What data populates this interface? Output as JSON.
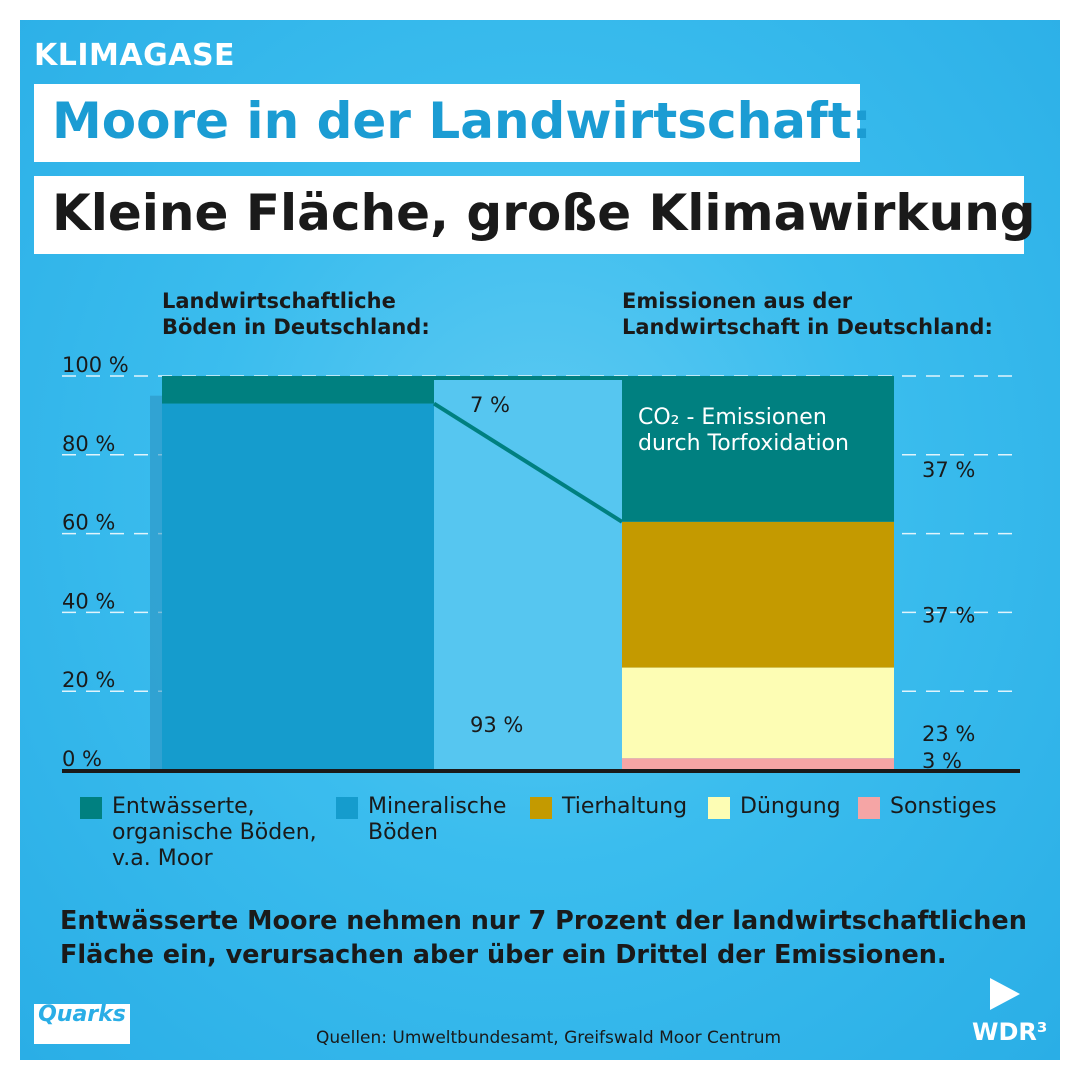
{
  "header": {
    "kicker": "KLIMAGASE",
    "title_line1": "Moore in der Landwirtschaft:",
    "title_line2": "Kleine Fläche, große Klimawirkung"
  },
  "chart_data": {
    "type": "bar",
    "stacked": true,
    "categories": [
      "Landwirtschaftliche\nBöden in Deutschland:",
      "Emissionen aus der\nLandwirtschaft in Deutschland:"
    ],
    "series": [
      {
        "name": "Sonstiges",
        "color": "#f5a5a5",
        "values": [
          0,
          3
        ],
        "value_labels": [
          "",
          "3 %"
        ]
      },
      {
        "name": "Düngung",
        "color": "#fdfdb4",
        "values": [
          0,
          23
        ],
        "value_labels": [
          "",
          "23 %"
        ]
      },
      {
        "name": "Tierhaltung",
        "color": "#c49a00",
        "values": [
          0,
          37
        ],
        "value_labels": [
          "",
          "37 %"
        ]
      },
      {
        "name": "Mineralische\nBöden",
        "color": "#159ccd",
        "values": [
          93,
          0
        ],
        "value_labels": [
          "93 %",
          ""
        ]
      },
      {
        "name": "Entwässerte,\norganische Böden,\nv.a. Moor",
        "color": "#008080",
        "values": [
          7,
          37
        ],
        "value_labels": [
          "7 %",
          "37 %"
        ]
      }
    ],
    "bar_annotation": "CO₂ - Emissionen\ndurch Torfoxidation",
    "y_ticks": [
      "0 %",
      "20 %",
      "40 %",
      "60 %",
      "80 %",
      "100 %"
    ],
    "ylim": [
      0,
      100
    ],
    "grid": "dashed",
    "legend": "bottom"
  },
  "legend": {
    "items": [
      {
        "label": "Entwässerte,\norganische Böden,\nv.a. Moor",
        "color": "#008080"
      },
      {
        "label": "Mineralische\nBöden",
        "color": "#159ccd"
      },
      {
        "label": "Tierhaltung",
        "color": "#c49a00"
      },
      {
        "label": "Düngung",
        "color": "#fdfdb4"
      },
      {
        "label": "Sonstiges",
        "color": "#f5a5a5"
      }
    ]
  },
  "summary": "Entwässerte Moore nehmen nur 7 Prozent der landwirtschaftlichen Fläche ein, verursachen aber über ein Drittel der Emissionen.",
  "source": "Quellen: Umweltbundesamt, Greifswald Moor Centrum",
  "logos": {
    "quarks": "Quarks",
    "wdr": "WDR³"
  }
}
